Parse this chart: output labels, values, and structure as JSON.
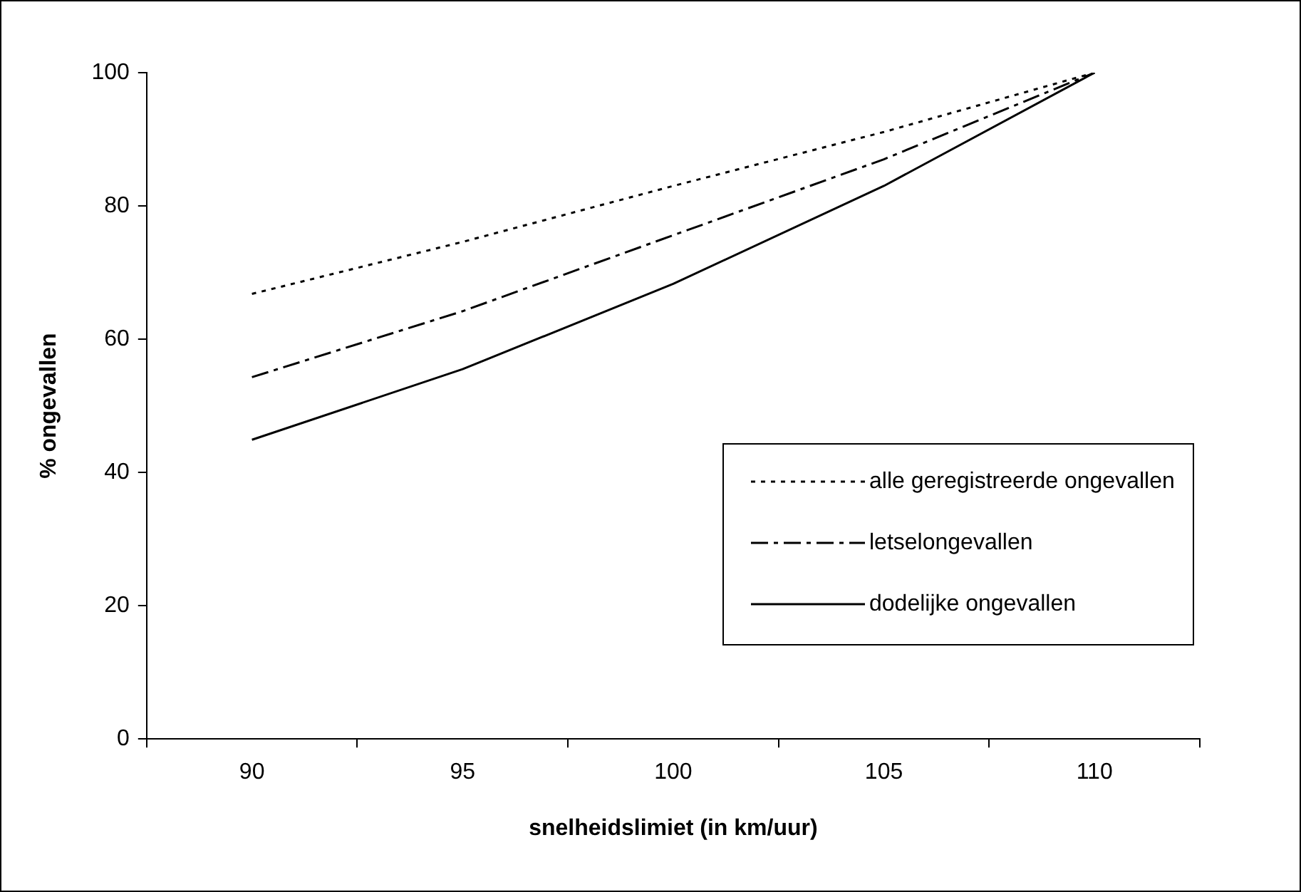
{
  "chart_data": {
    "type": "line",
    "xlabel": "snelheidslimiet (in km/uur)",
    "ylabel": "% ongevallen",
    "categories": [
      "90",
      "95",
      "100",
      "105",
      "110"
    ],
    "ylim": [
      0,
      100
    ],
    "yticks": [
      0,
      20,
      40,
      60,
      80,
      100
    ],
    "grid": false,
    "legend": "right",
    "marker": "none",
    "series": [
      {
        "name": "alle geregistreerde ongevallen",
        "color": "#000000",
        "line_style": "dotted",
        "values": [
          66.8,
          74.6,
          83.0,
          91.1,
          100
        ]
      },
      {
        "name": "letselongevallen",
        "color": "#000000",
        "line_style": "dashed",
        "values": [
          54.3,
          64.2,
          75.6,
          87.0,
          100
        ]
      },
      {
        "name": "dodelijke ongevallen",
        "color": "#000000",
        "line_style": "solid",
        "values": [
          44.9,
          55.5,
          68.3,
          83.0,
          100
        ]
      }
    ]
  }
}
